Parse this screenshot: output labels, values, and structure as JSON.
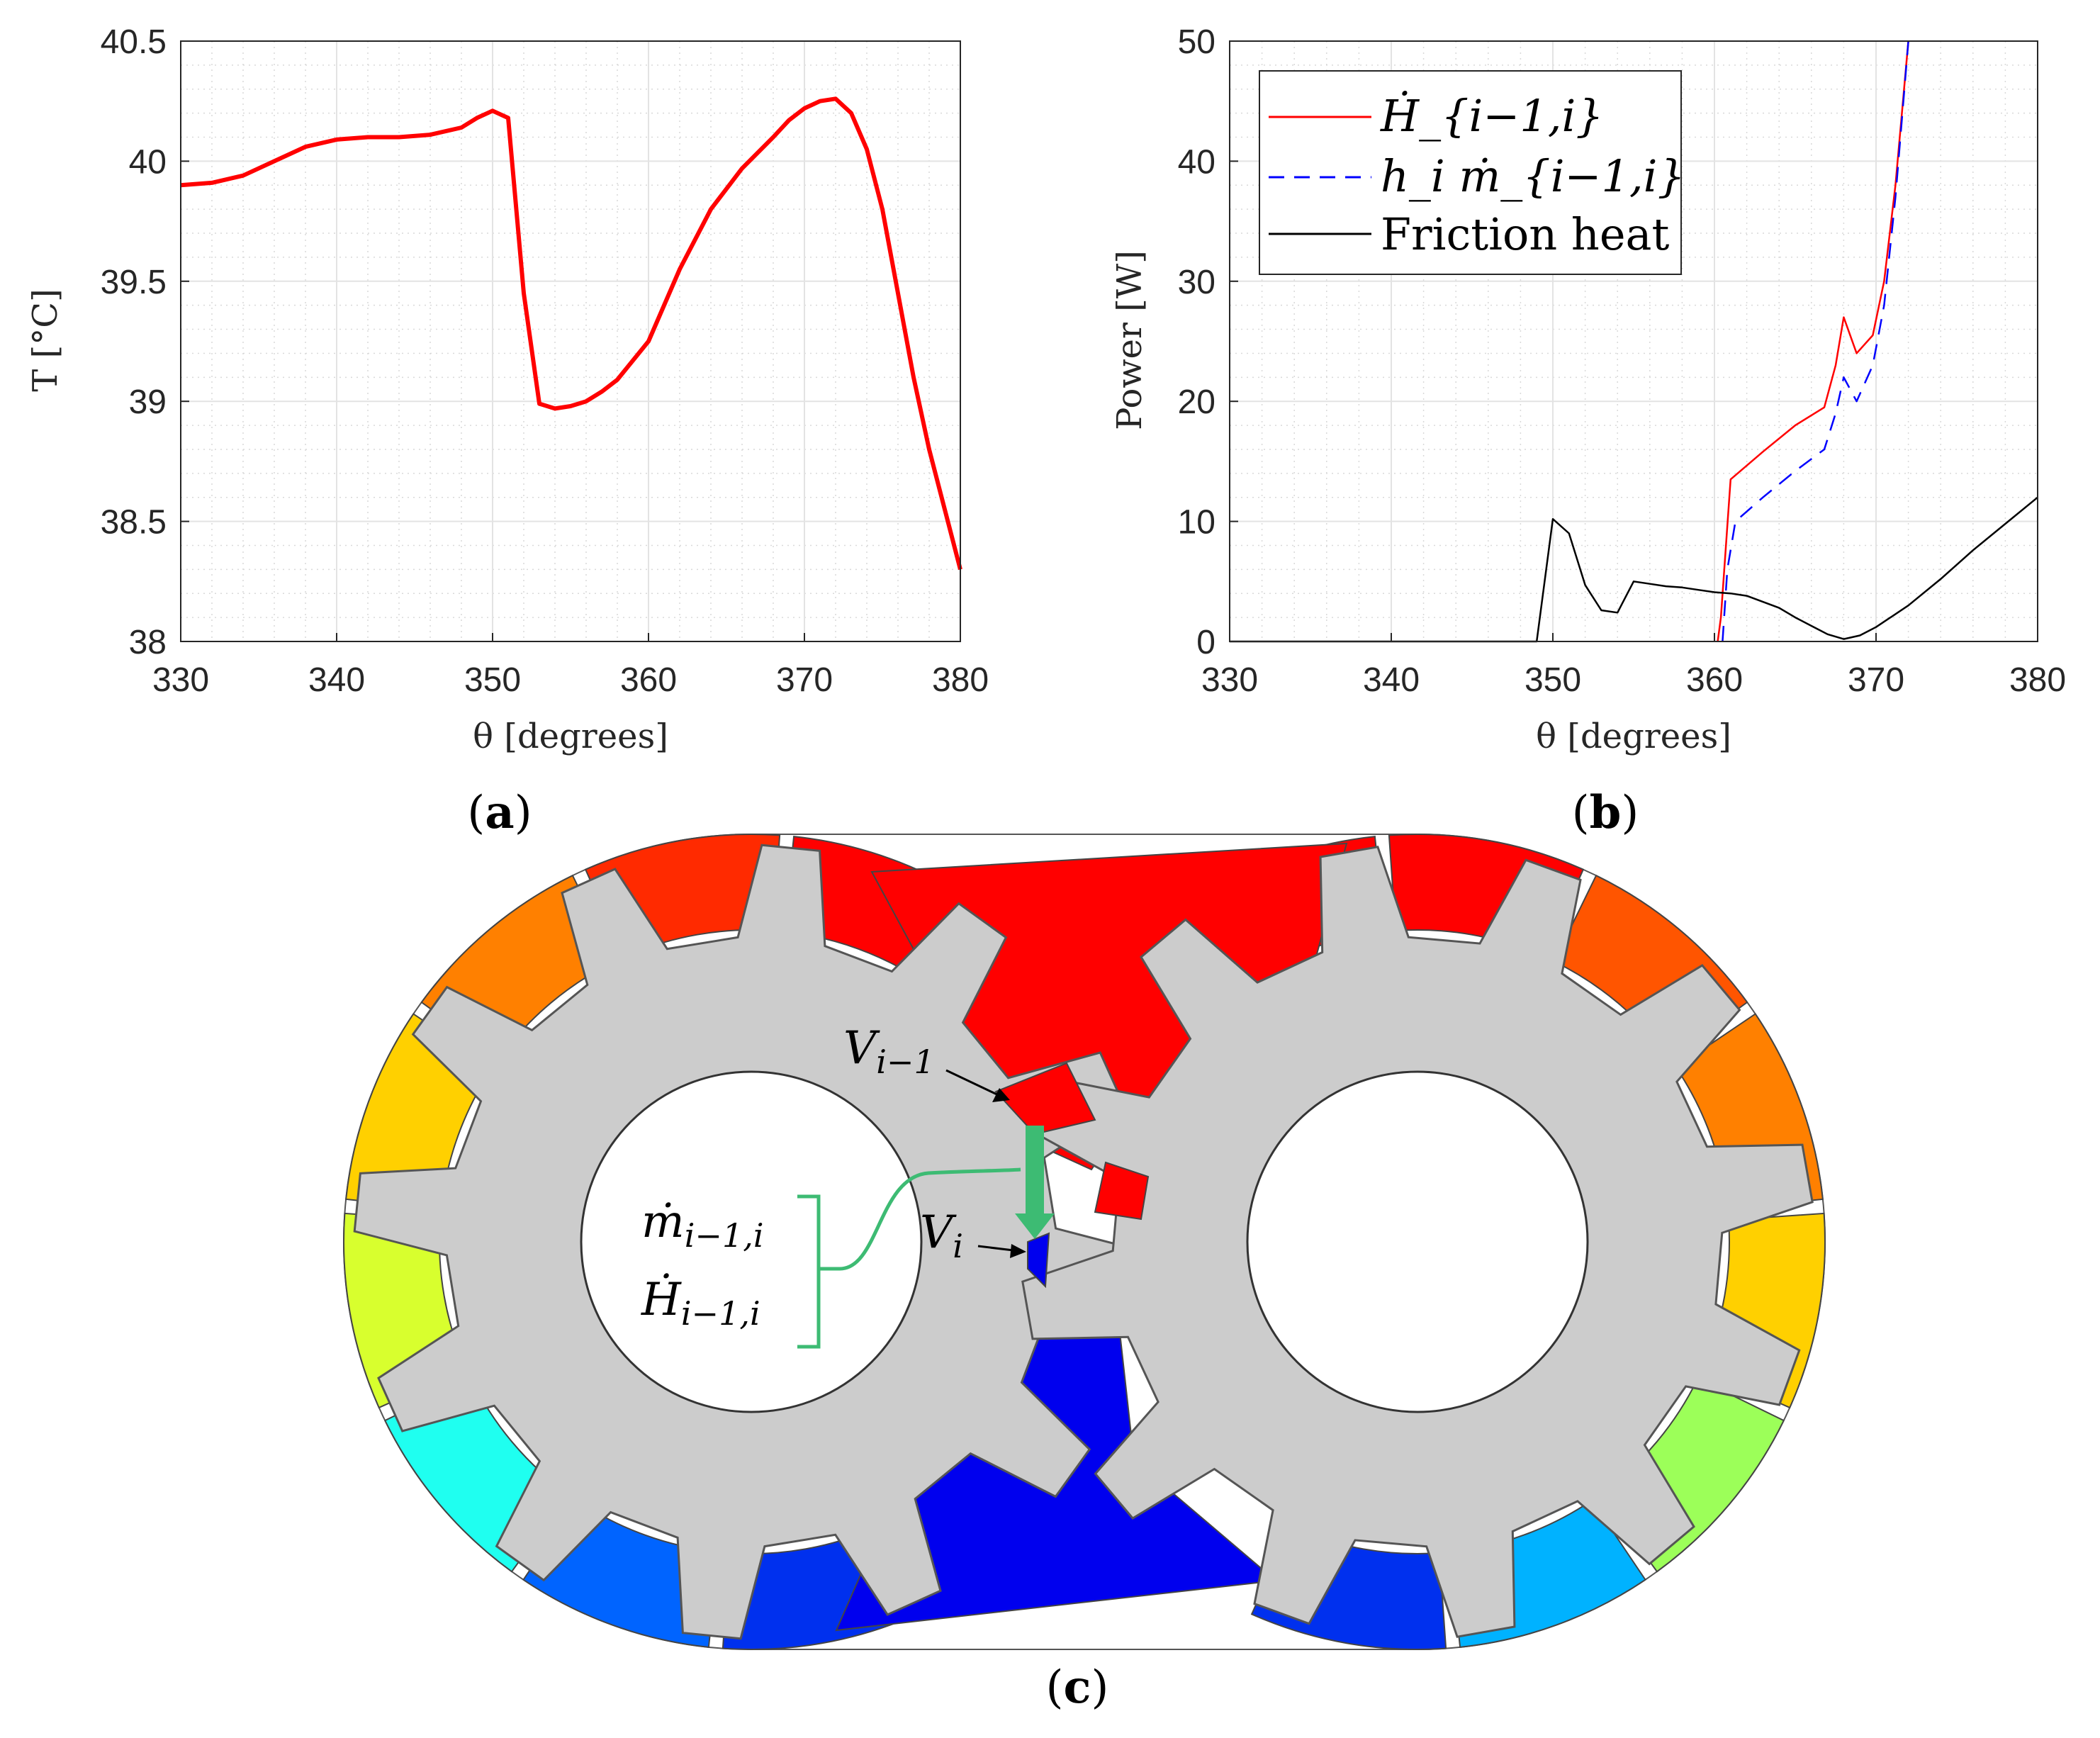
{
  "chart_data": [
    {
      "id": "a",
      "type": "line",
      "panel_label": "a",
      "xlabel": "θ [degrees]",
      "ylabel": "T [°C]",
      "xlim": [
        330,
        380
      ],
      "ylim": [
        38,
        40.5
      ],
      "xticks": [
        "330",
        "340",
        "350",
        "360",
        "370",
        "380"
      ],
      "yticks": [
        "38",
        "38.5",
        "39",
        "39.5",
        "40",
        "40.5"
      ],
      "grid": true,
      "series": [
        {
          "name": "T",
          "color": "#ff0000",
          "x": [
            330,
            332,
            334,
            336,
            338,
            340,
            342,
            344,
            346,
            348,
            349,
            350,
            351,
            352,
            353,
            354,
            355,
            356,
            357,
            358,
            360,
            362,
            364,
            366,
            368,
            369,
            370,
            371,
            372,
            373,
            374,
            375,
            376,
            377,
            378,
            379,
            380
          ],
          "y": [
            39.9,
            39.91,
            39.94,
            40.0,
            40.06,
            40.09,
            40.1,
            40.1,
            40.11,
            40.14,
            40.18,
            40.21,
            40.18,
            39.45,
            38.99,
            38.97,
            38.98,
            39.0,
            39.04,
            39.09,
            39.25,
            39.55,
            39.8,
            39.97,
            40.1,
            40.17,
            40.22,
            40.25,
            40.26,
            40.2,
            40.05,
            39.8,
            39.45,
            39.1,
            38.8,
            38.55,
            38.3
          ]
        }
      ]
    },
    {
      "id": "b",
      "type": "line",
      "panel_label": "b",
      "xlabel": "θ [degrees]",
      "ylabel": "Power [W]",
      "xlim": [
        330,
        380
      ],
      "ylim": [
        0,
        50
      ],
      "xticks": [
        "330",
        "340",
        "350",
        "360",
        "370",
        "380"
      ],
      "yticks": [
        "0",
        "10",
        "20",
        "30",
        "40",
        "50"
      ],
      "grid": true,
      "legend_position": "top-left",
      "series": [
        {
          "name": "Ḣ_{i−1,i}",
          "color": "#ff0000",
          "style": "solid",
          "x": [
            360.2,
            360.4,
            361.0,
            363.0,
            365.0,
            366.8,
            367.5,
            368.0,
            368.8,
            369.8,
            370.5,
            371.2,
            372.0
          ],
          "y": [
            0,
            2,
            13.5,
            15.8,
            18.0,
            19.5,
            23,
            27.0,
            24.0,
            25.5,
            30,
            38,
            50
          ]
        },
        {
          "name": "h_i ṁ_{i−1,i}",
          "color": "#0000ff",
          "style": "dashed",
          "x": [
            360.5,
            360.8,
            361.3,
            363.0,
            365.0,
            366.8,
            367.5,
            368.0,
            368.8,
            369.8,
            370.5,
            371.2,
            372.0
          ],
          "y": [
            0,
            6,
            10.0,
            12.0,
            14.2,
            16.0,
            19,
            22.0,
            20.0,
            23.0,
            28,
            37,
            50
          ]
        },
        {
          "name": "Friction heat",
          "color": "#000000",
          "style": "solid",
          "x": [
            330,
            349,
            350,
            351,
            352,
            353,
            354,
            355,
            356,
            357,
            358,
            359,
            360,
            361,
            362,
            363,
            364,
            365,
            366,
            367,
            368,
            369,
            370,
            372,
            374,
            376,
            378,
            380
          ],
          "y": [
            0,
            0,
            10.2,
            9.0,
            4.7,
            2.6,
            2.4,
            5.0,
            4.8,
            4.6,
            4.5,
            4.3,
            4.1,
            4.0,
            3.8,
            3.3,
            2.8,
            2.0,
            1.3,
            0.6,
            0.2,
            0.5,
            1.2,
            3.0,
            5.2,
            7.6,
            9.8,
            12.0
          ]
        }
      ]
    }
  ],
  "panel_c": {
    "label": "c",
    "v_prev_label": "V",
    "v_prev_sub": "i−1",
    "v_cur_label": "V",
    "v_cur_sub": "i",
    "mdot_label": "ṁ",
    "mdot_sub": "i−1,i",
    "hdot_label": "Ḣ",
    "hdot_sub": "i−1,i",
    "fill_colors": [
      "#ff0000",
      "#ff2a00",
      "#ff5500",
      "#ff8000",
      "#ffaa00",
      "#ffd000",
      "#d8ff2e",
      "#9cff59",
      "#1ffff0",
      "#00b2ff",
      "#0064ff",
      "#0030ee",
      "#0000ee"
    ]
  }
}
